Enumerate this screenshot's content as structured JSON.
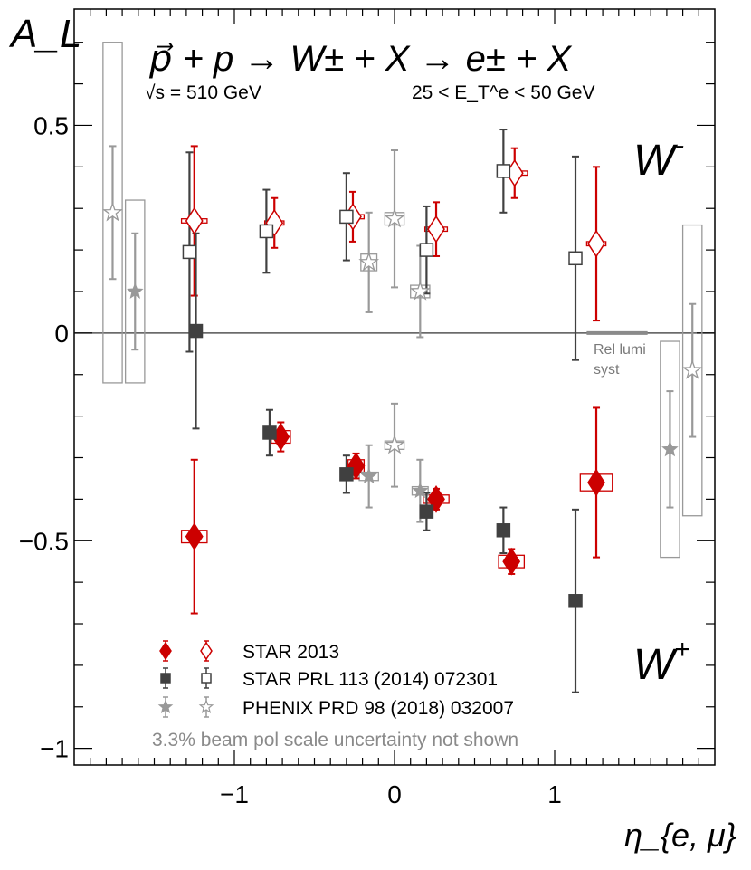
{
  "chart_data": {
    "type": "scatter",
    "title": "p⃗ + p → W± + X → e± + X",
    "subtitle_left": "√s = 510 GeV",
    "subtitle_right": "25 < E_T^e < 50 GeV",
    "xlabel": "η_{e, μ}",
    "ylabel": "A_L",
    "xlim": [
      -2.0,
      2.0
    ],
    "ylim": [
      -1.04,
      0.78
    ],
    "x_ticks": [
      {
        "value": -1,
        "label": "−1"
      },
      {
        "value": 0,
        "label": "0"
      },
      {
        "value": 1,
        "label": "1"
      }
    ],
    "y_ticks": [
      {
        "value": 0.5,
        "label": "0.5"
      },
      {
        "value": 0,
        "label": "0"
      },
      {
        "value": -0.5,
        "label": "−0.5"
      },
      {
        "value": -1,
        "label": "−1"
      }
    ],
    "region_labels": {
      "w_minus": "W",
      "w_minus_sup": "-",
      "w_plus": "W",
      "w_plus_sup": "+"
    },
    "rel_lumi": {
      "value": 0,
      "x_range": [
        1.2,
        1.58
      ],
      "label_line1": "Rel lumi",
      "label_line2": "syst"
    },
    "note": "3.3% beam pol scale uncertainty not shown",
    "colors": {
      "star2013": "#cc0000",
      "star2014": "#404040",
      "phenix": "#999999",
      "axis": "#000000",
      "zero_line": "#555555"
    },
    "legend": [
      {
        "label": "STAR 2013",
        "marker": "diamond",
        "color": "#cc0000"
      },
      {
        "label": "STAR PRL 113 (2014) 072301",
        "marker": "square",
        "color": "#404040"
      },
      {
        "label": "PHENIX PRD 98 (2018) 032007",
        "marker": "star",
        "color": "#999999"
      }
    ],
    "series": [
      {
        "name": "STAR 2013 W+",
        "marker": "diamond",
        "fill": "filled",
        "color": "#cc0000",
        "points": [
          {
            "x": -1.25,
            "y": -0.49,
            "err": 0.185,
            "sys_x": 0.08,
            "sys_y": 0.015
          },
          {
            "x": -0.71,
            "y": -0.25,
            "err": 0.035,
            "sys_x": 0.06,
            "sys_y": 0.015
          },
          {
            "x": -0.24,
            "y": -0.32,
            "err": 0.03,
            "sys_x": 0.05,
            "sys_y": 0.015
          },
          {
            "x": 0.26,
            "y": -0.4,
            "err": 0.025,
            "sys_x": 0.08,
            "sys_y": 0.01
          },
          {
            "x": 0.73,
            "y": -0.55,
            "err": 0.03,
            "sys_x": 0.08,
            "sys_y": 0.015
          },
          {
            "x": 1.26,
            "y": -0.36,
            "err": 0.18,
            "sys_x": 0.1,
            "sys_y": 0.02
          }
        ]
      },
      {
        "name": "STAR 2013 W-",
        "marker": "diamond",
        "fill": "open",
        "color": "#cc0000",
        "points": [
          {
            "x": -1.25,
            "y": 0.27,
            "err": 0.18,
            "sys_x": 0.08,
            "sys_y": 0.005
          },
          {
            "x": -0.75,
            "y": 0.265,
            "err": 0.06,
            "sys_x": 0.06,
            "sys_y": 0.005
          },
          {
            "x": -0.26,
            "y": 0.28,
            "err": 0.06,
            "sys_x": 0.07,
            "sys_y": 0.005
          },
          {
            "x": 0.26,
            "y": 0.25,
            "err": 0.065,
            "sys_x": 0.07,
            "sys_y": 0.005
          },
          {
            "x": 0.75,
            "y": 0.385,
            "err": 0.06,
            "sys_x": 0.08,
            "sys_y": 0.005
          },
          {
            "x": 1.26,
            "y": 0.215,
            "err": 0.185,
            "sys_x": 0.06,
            "sys_y": 0.005
          }
        ]
      },
      {
        "name": "STAR 2014 W+",
        "marker": "square",
        "fill": "filled",
        "color": "#404040",
        "points": [
          {
            "x": -1.24,
            "y": 0.005,
            "err": 0.235
          },
          {
            "x": -0.78,
            "y": -0.24,
            "err": 0.055
          },
          {
            "x": -0.3,
            "y": -0.34,
            "err": 0.045
          },
          {
            "x": 0.2,
            "y": -0.43,
            "err": 0.045
          },
          {
            "x": 0.68,
            "y": -0.475,
            "err": 0.055
          },
          {
            "x": 1.13,
            "y": -0.645,
            "err": 0.22
          }
        ]
      },
      {
        "name": "STAR 2014 W-",
        "marker": "square",
        "fill": "open",
        "color": "#404040",
        "points": [
          {
            "x": -1.28,
            "y": 0.195,
            "err": 0.24
          },
          {
            "x": -0.8,
            "y": 0.245,
            "err": 0.1
          },
          {
            "x": -0.3,
            "y": 0.28,
            "err": 0.105
          },
          {
            "x": 0.2,
            "y": 0.2,
            "err": 0.105
          },
          {
            "x": 0.68,
            "y": 0.39,
            "err": 0.1
          },
          {
            "x": 1.13,
            "y": 0.18,
            "err": 0.245
          }
        ]
      },
      {
        "name": "PHENIX W+",
        "marker": "star",
        "fill": "filled",
        "color": "#999999",
        "points": [
          {
            "x": -1.62,
            "y": 0.1,
            "err": 0.14,
            "sys_x": 0.06,
            "sys_y": 0.22
          },
          {
            "x": -0.16,
            "y": -0.345,
            "err": 0.075,
            "sys_x": 0.06,
            "sys_y": 0.01
          },
          {
            "x": 0.16,
            "y": -0.38,
            "err": 0.075,
            "sys_x": 0.05,
            "sys_y": 0.01
          },
          {
            "x": 1.72,
            "y": -0.28,
            "err": 0.14,
            "sys_x": 0.06,
            "sys_y": 0.26
          }
        ]
      },
      {
        "name": "PHENIX W-",
        "marker": "star",
        "fill": "open",
        "color": "#999999",
        "points": [
          {
            "x": -1.76,
            "y": 0.29,
            "err": 0.16,
            "sys_x": 0.06,
            "sys_y": 0.41
          },
          {
            "x": -0.16,
            "y": 0.17,
            "err": 0.12,
            "sys_x": 0.05,
            "sys_y": 0.02
          },
          {
            "x": 0.0,
            "y": 0.275,
            "err": 0.165,
            "sys_x": 0.06,
            "sys_y": 0.015
          },
          {
            "x": 0.16,
            "y": 0.1,
            "err": 0.11,
            "sys_x": 0.06,
            "sys_y": 0.015
          },
          {
            "x": 0.0,
            "y": -0.27,
            "err": 0.1,
            "sys_x": 0.06,
            "sys_y": 0.01
          },
          {
            "x": 1.86,
            "y": -0.09,
            "err": 0.16,
            "sys_x": 0.06,
            "sys_y": 0.35
          }
        ]
      }
    ]
  }
}
